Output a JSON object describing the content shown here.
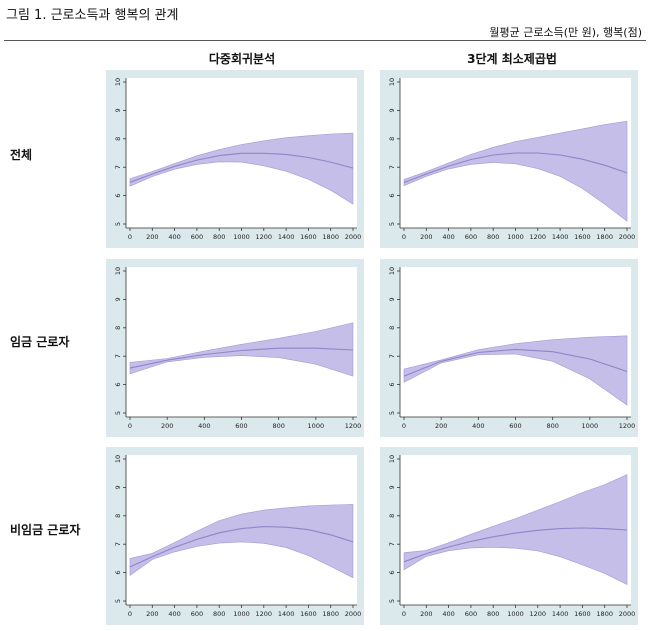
{
  "figure": {
    "title": "그림 1.  근로소득과 행복의 관계",
    "units": "월평균 근로소득(만 원), 행복(점)",
    "columns": [
      "다중회귀분석",
      "3단계 최소제곱법"
    ],
    "rows": [
      "전체",
      "임금 근로자",
      "비임금 근로자"
    ]
  },
  "colors": {
    "panel_bg": "#dbe8ec",
    "plot_bg": "#ffffff",
    "band": "#c4bee8",
    "band_edge": "#a29bd6",
    "line": "#8e86c8",
    "axis": "#333333"
  },
  "chart_data": [
    {
      "type": "area",
      "row": "전체",
      "column": "다중회귀분석",
      "xlim": [
        0,
        2000
      ],
      "ylim": [
        5,
        10
      ],
      "xticks": [
        0,
        200,
        400,
        600,
        800,
        1000,
        1200,
        1400,
        1600,
        1800,
        2000
      ],
      "yticks": [
        5,
        6,
        7,
        8,
        9,
        10
      ],
      "x": [
        0,
        200,
        400,
        600,
        800,
        1000,
        1200,
        1400,
        1600,
        1800,
        2000
      ],
      "fit": [
        6.47,
        6.76,
        7.03,
        7.25,
        7.41,
        7.49,
        7.49,
        7.45,
        7.34,
        7.18,
        6.97
      ],
      "upper": [
        6.6,
        6.85,
        7.13,
        7.4,
        7.62,
        7.8,
        7.93,
        8.04,
        8.11,
        8.17,
        8.2
      ],
      "lower": [
        6.33,
        6.67,
        6.93,
        7.1,
        7.19,
        7.18,
        7.05,
        6.86,
        6.57,
        6.19,
        5.7
      ]
    },
    {
      "type": "area",
      "row": "전체",
      "column": "3단계 최소제곱법",
      "xlim": [
        0,
        2000
      ],
      "ylim": [
        5,
        10
      ],
      "xticks": [
        0,
        200,
        400,
        600,
        800,
        1000,
        1200,
        1400,
        1600,
        1800,
        2000
      ],
      "yticks": [
        5,
        6,
        7,
        8,
        9,
        10
      ],
      "x": [
        0,
        200,
        400,
        600,
        800,
        1000,
        1200,
        1400,
        1600,
        1800,
        2000
      ],
      "fit": [
        6.46,
        6.76,
        7.04,
        7.27,
        7.43,
        7.5,
        7.5,
        7.43,
        7.28,
        7.07,
        6.8
      ],
      "upper": [
        6.57,
        6.84,
        7.15,
        7.45,
        7.7,
        7.9,
        8.05,
        8.2,
        8.35,
        8.5,
        8.62
      ],
      "lower": [
        6.35,
        6.68,
        6.94,
        7.1,
        7.17,
        7.12,
        6.95,
        6.68,
        6.25,
        5.7,
        5.1
      ]
    },
    {
      "type": "area",
      "row": "임금 근로자",
      "column": "다중회귀분석",
      "xlim": [
        0,
        1200
      ],
      "ylim": [
        5,
        10
      ],
      "xticks": [
        0,
        200,
        400,
        600,
        800,
        1000,
        1200
      ],
      "yticks": [
        5,
        6,
        7,
        8,
        9,
        10
      ],
      "x": [
        0,
        200,
        400,
        600,
        800,
        1000,
        1200
      ],
      "fit": [
        6.58,
        6.86,
        7.06,
        7.2,
        7.28,
        7.28,
        7.22
      ],
      "upper": [
        6.78,
        6.92,
        7.18,
        7.42,
        7.63,
        7.87,
        8.18
      ],
      "lower": [
        6.38,
        6.8,
        6.96,
        7.02,
        6.95,
        6.72,
        6.3
      ]
    },
    {
      "type": "area",
      "row": "임금 근로자",
      "column": "3단계 최소제곱법",
      "xlim": [
        0,
        1200
      ],
      "ylim": [
        5,
        10
      ],
      "xticks": [
        0,
        200,
        400,
        600,
        800,
        1000,
        1200
      ],
      "yticks": [
        5,
        6,
        7,
        8,
        9,
        10
      ],
      "x": [
        0,
        200,
        400,
        600,
        800,
        1000,
        1200
      ],
      "fit": [
        6.3,
        6.82,
        7.13,
        7.24,
        7.16,
        6.9,
        6.46
      ],
      "upper": [
        6.55,
        6.87,
        7.23,
        7.44,
        7.58,
        7.67,
        7.72
      ],
      "lower": [
        6.08,
        6.76,
        7.05,
        7.08,
        6.82,
        6.2,
        5.28
      ]
    },
    {
      "type": "area",
      "row": "비임금 근로자",
      "column": "다중회귀분석",
      "xlim": [
        0,
        2000
      ],
      "ylim": [
        5,
        10
      ],
      "xticks": [
        0,
        200,
        400,
        600,
        800,
        1000,
        1200,
        1400,
        1600,
        1800,
        2000
      ],
      "yticks": [
        5,
        6,
        7,
        8,
        9,
        10
      ],
      "x": [
        0,
        200,
        400,
        600,
        800,
        1000,
        1200,
        1400,
        1600,
        1800,
        2000
      ],
      "fit": [
        6.2,
        6.56,
        6.89,
        7.17,
        7.4,
        7.55,
        7.62,
        7.6,
        7.51,
        7.33,
        7.08
      ],
      "upper": [
        6.5,
        6.68,
        7.06,
        7.46,
        7.83,
        8.06,
        8.2,
        8.28,
        8.35,
        8.38,
        8.4
      ],
      "lower": [
        5.9,
        6.46,
        6.73,
        6.92,
        7.04,
        7.08,
        7.03,
        6.88,
        6.6,
        6.22,
        5.82
      ]
    },
    {
      "type": "area",
      "row": "비임금 근로자",
      "column": "3단계 최소제곱법",
      "xlim": [
        0,
        2000
      ],
      "ylim": [
        5,
        10
      ],
      "xticks": [
        0,
        200,
        400,
        600,
        800,
        1000,
        1200,
        1400,
        1600,
        1800,
        2000
      ],
      "yticks": [
        5,
        6,
        7,
        8,
        9,
        10
      ],
      "x": [
        0,
        200,
        400,
        600,
        800,
        1000,
        1200,
        1400,
        1600,
        1800,
        2000
      ],
      "fit": [
        6.38,
        6.67,
        6.9,
        7.1,
        7.26,
        7.39,
        7.49,
        7.55,
        7.57,
        7.55,
        7.5
      ],
      "upper": [
        6.7,
        6.78,
        7.05,
        7.35,
        7.63,
        7.9,
        8.2,
        8.5,
        8.82,
        9.1,
        9.45
      ],
      "lower": [
        6.1,
        6.57,
        6.77,
        6.87,
        6.89,
        6.86,
        6.76,
        6.56,
        6.27,
        5.97,
        5.58
      ]
    }
  ]
}
